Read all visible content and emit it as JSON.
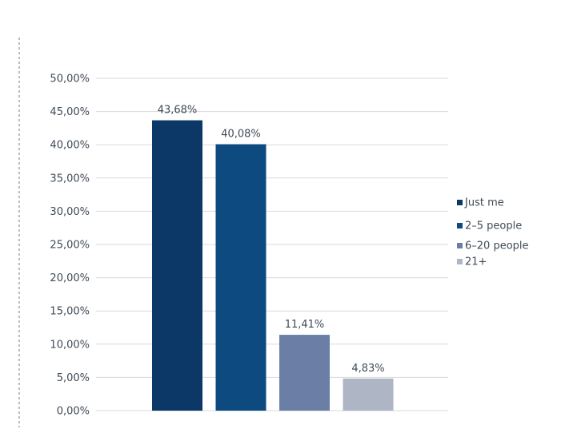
{
  "chart_data": {
    "type": "bar",
    "categories": [
      "Just me",
      "2–5 people",
      "6–20 people",
      "21+"
    ],
    "values": [
      43.68,
      40.08,
      11.41,
      4.83
    ],
    "value_labels": [
      "43,68%",
      "40,08%",
      "11,41%",
      "4,83%"
    ],
    "colors": [
      "#0b3866",
      "#0d4a80",
      "#6b7fa6",
      "#aeb6c6"
    ],
    "ylim": [
      0,
      50
    ],
    "yticks": [
      0,
      5,
      10,
      15,
      20,
      25,
      30,
      35,
      40,
      45,
      50
    ],
    "ytick_labels": [
      "0,00%",
      "5,00%",
      "10,00%",
      "15,00%",
      "20,00%",
      "25,00%",
      "30,00%",
      "35,00%",
      "40,00%",
      "45,00%",
      "50,00%"
    ],
    "grid": true,
    "legend_position": "right",
    "title": "",
    "xlabel": "",
    "ylabel": ""
  }
}
